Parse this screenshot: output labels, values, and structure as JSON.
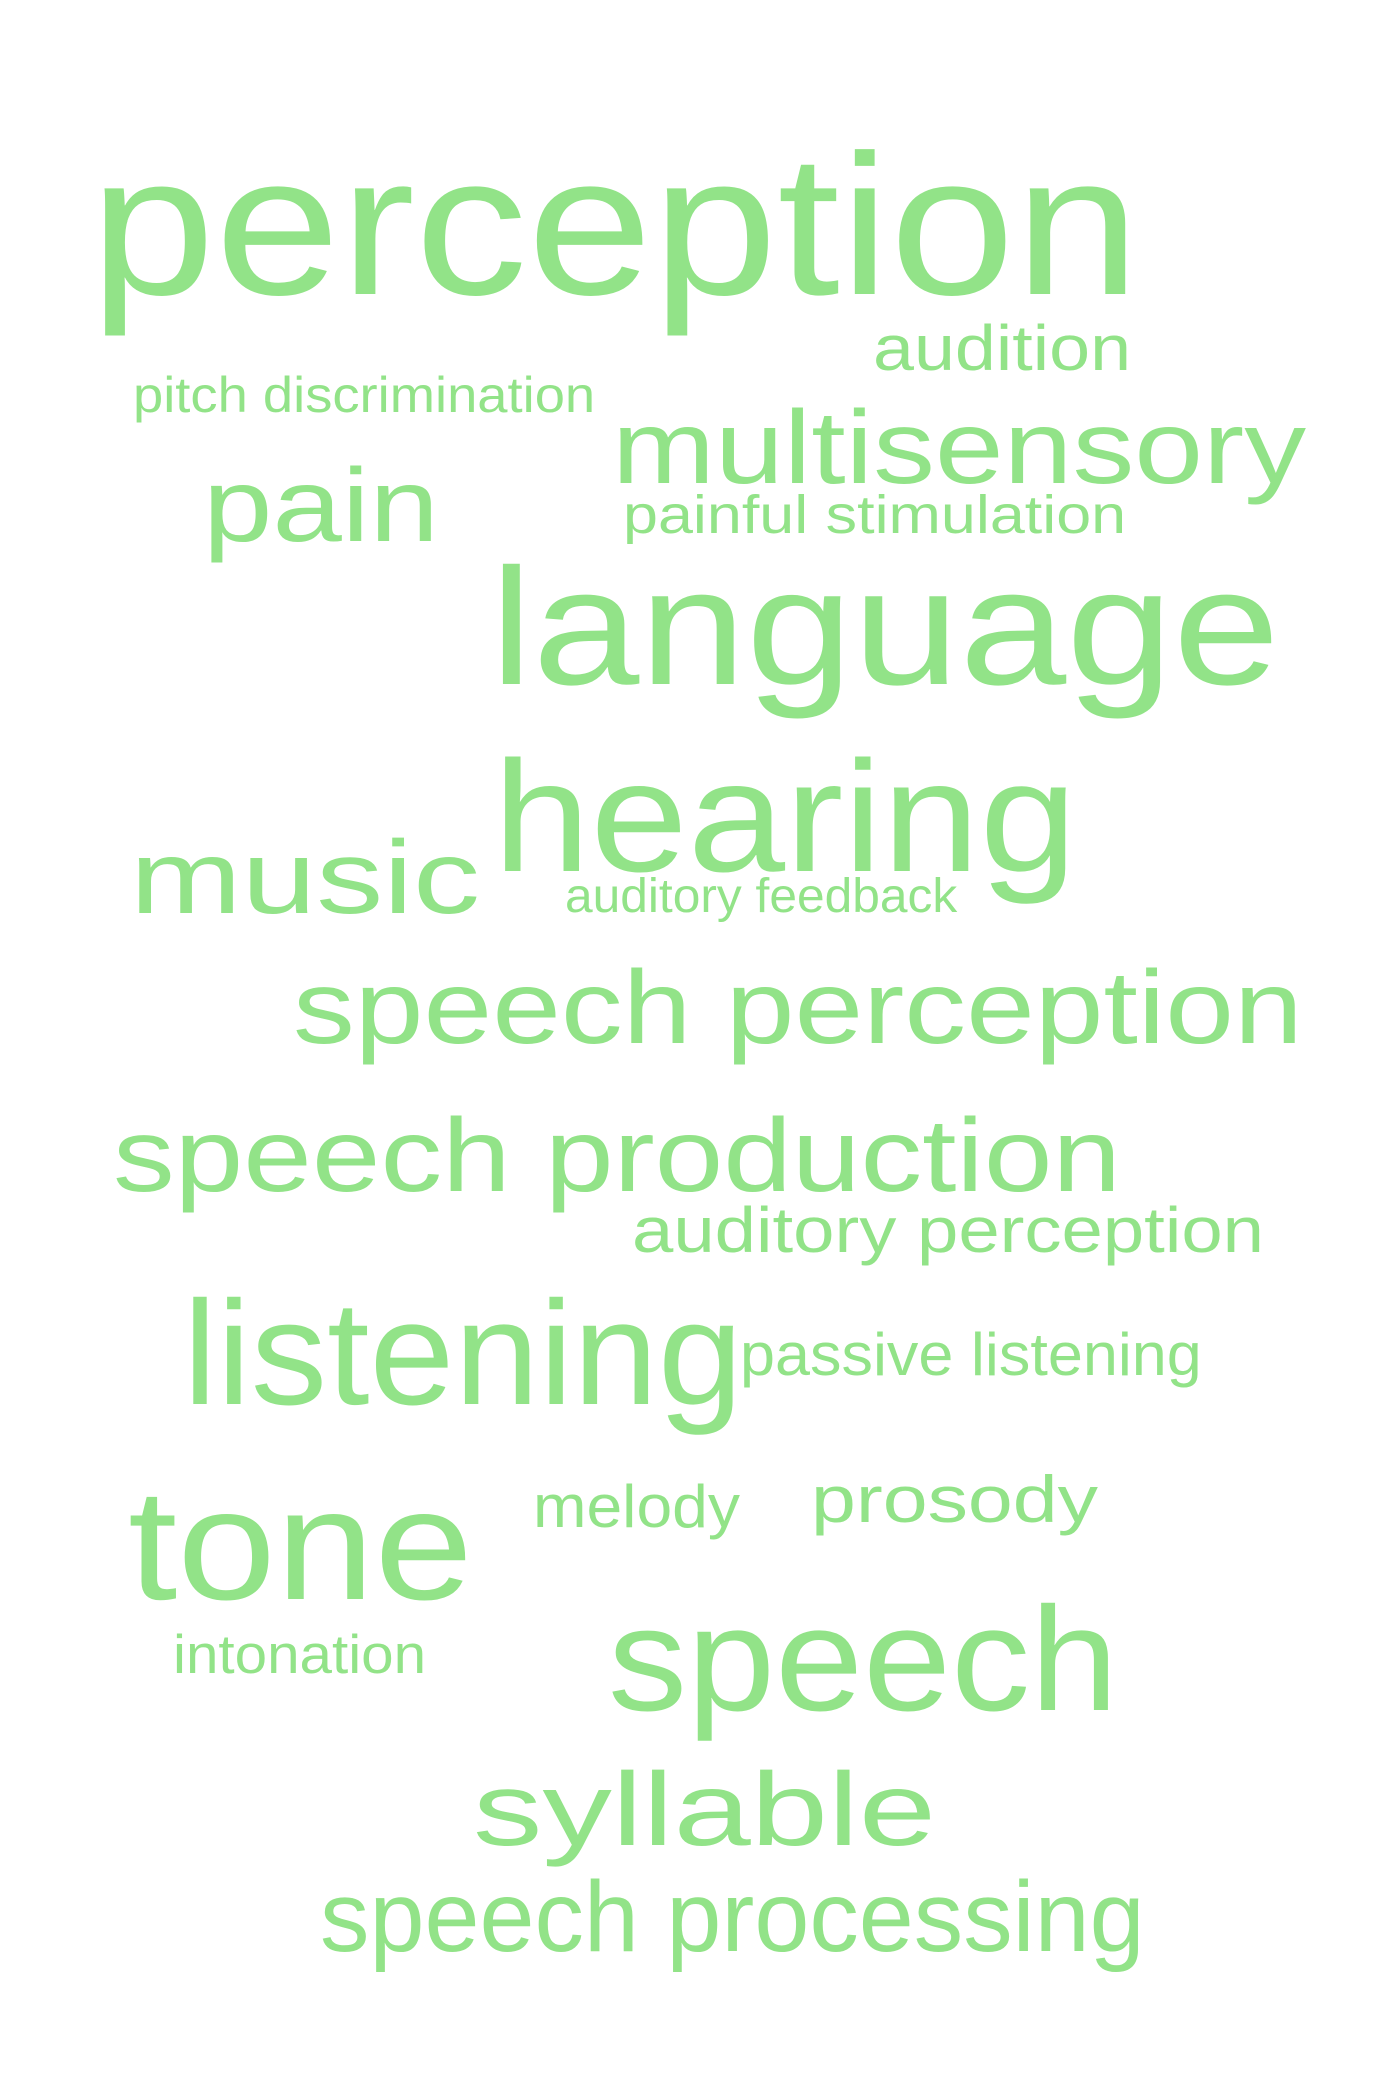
{
  "word_cloud": {
    "color": "#92e388",
    "words": [
      "perception",
      "audition",
      "pitch discrimination",
      "multisensory",
      "pain",
      "painful stimulation",
      "language",
      "hearing",
      "music",
      "auditory feedback",
      "speech perception",
      "speech production",
      "auditory perception",
      "listening",
      "passive listening",
      "tone",
      "melody",
      "prosody",
      "intonation",
      "speech",
      "syllable",
      "speech processing"
    ]
  }
}
